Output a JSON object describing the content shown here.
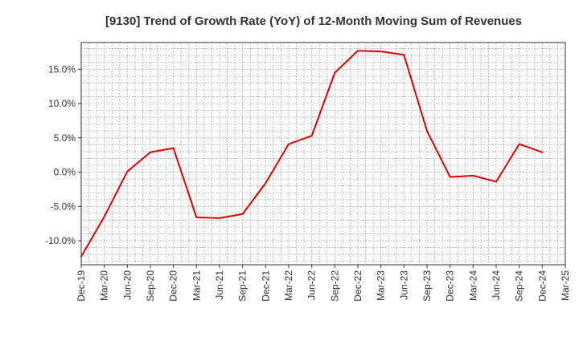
{
  "chart_data": {
    "type": "line",
    "title": "[9130]  Trend of Growth Rate (YoY) of 12-Month Moving Sum of Revenues",
    "xlabel": "",
    "ylabel": "",
    "x": [
      "Dec-19",
      "Mar-20",
      "Jun-20",
      "Sep-20",
      "Dec-20",
      "Mar-21",
      "Jun-21",
      "Sep-21",
      "Dec-21",
      "Mar-22",
      "Jun-22",
      "Sep-22",
      "Dec-22",
      "Mar-23",
      "Jun-23",
      "Sep-23",
      "Dec-23",
      "Mar-24",
      "Jun-24",
      "Sep-24",
      "Dec-24",
      "Mar-25"
    ],
    "series": [
      {
        "name": "",
        "color": "#e00000",
        "values": [
          -12.3,
          -6.5,
          0.1,
          2.9,
          3.5,
          -6.6,
          -6.7,
          -6.1,
          -1.6,
          4.1,
          5.3,
          14.5,
          17.7,
          17.6,
          17.1,
          6.0,
          -0.7,
          -0.5,
          -1.4,
          4.1,
          2.9,
          null
        ]
      }
    ],
    "yticks": [
      {
        "value": 15,
        "label": "15.0%"
      },
      {
        "value": 10,
        "label": "10.0%"
      },
      {
        "value": 5,
        "label": "5.0%"
      },
      {
        "value": 0,
        "label": "0.0%"
      },
      {
        "value": -5,
        "label": "-5.0%"
      },
      {
        "value": -10,
        "label": "-10.0%"
      }
    ],
    "ylim": [
      -13.5,
      18.9
    ],
    "grid": true,
    "legend": "none"
  }
}
